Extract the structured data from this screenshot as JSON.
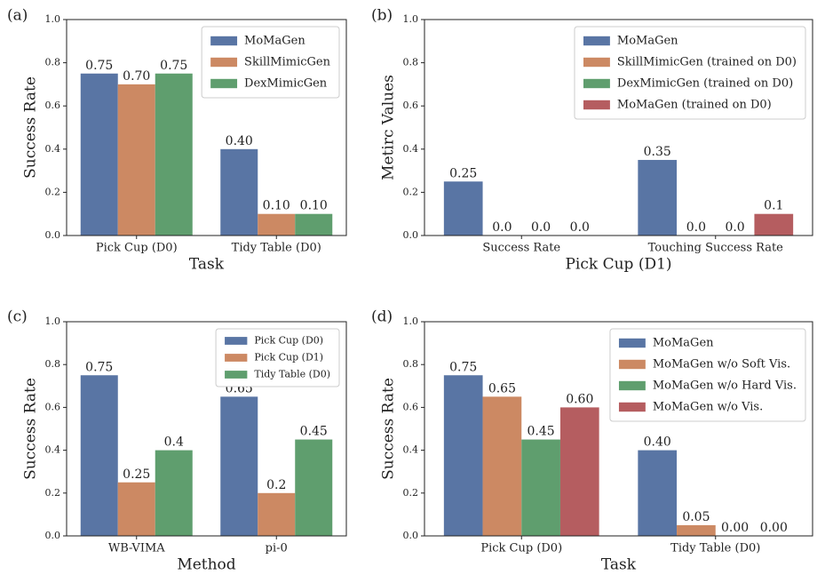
{
  "chart_data": [
    {
      "type": "bar",
      "label": "(a)",
      "xlabel": "Task",
      "ylabel": "Success Rate",
      "categories": [
        "Pick Cup (D0)",
        "Tidy Table (D0)"
      ],
      "series": [
        {
          "name": "MoMaGen",
          "color": "#5975a4",
          "values": [
            0.75,
            0.4
          ],
          "value_labels": [
            "0.75",
            "0.40"
          ]
        },
        {
          "name": "SkillMimicGen",
          "color": "#cc8963",
          "values": [
            0.7,
            0.1
          ],
          "value_labels": [
            "0.70",
            "0.10"
          ]
        },
        {
          "name": "DexMimicGen",
          "color": "#5f9e6e",
          "values": [
            0.75,
            0.1
          ],
          "value_labels": [
            "0.75",
            "0.10"
          ]
        }
      ],
      "ylim": [
        0,
        1
      ],
      "yticks": [
        {
          "value": 0,
          "label": "0.0"
        },
        0.2,
        0.4,
        0.6,
        0.8,
        {
          "value": 1,
          "label": "1.0"
        }
      ],
      "legend": "upper right",
      "grid": false
    },
    {
      "type": "bar",
      "label": "(b)",
      "xlabel": "Pick Cup (D1)",
      "ylabel": "Metirc Values",
      "categories": [
        "Success Rate",
        "Touching Success Rate"
      ],
      "series": [
        {
          "name": "MoMaGen",
          "color": "#5975a4",
          "values": [
            0.25,
            0.35
          ]
        },
        {
          "name": "SkillMimicGen (trained on D0)",
          "color": "#cc8963",
          "values": [
            0,
            0
          ],
          "value_labels": [
            "0.0",
            "0.0"
          ]
        },
        {
          "name": "DexMimicGen (trained on D0)",
          "color": "#5f9e6e",
          "values": [
            0,
            0
          ],
          "value_labels": [
            "0.0",
            "0.0"
          ]
        },
        {
          "name": "MoMaGen (trained on D0)",
          "color": "#b55d60",
          "values": [
            0,
            0.1
          ],
          "value_labels": [
            "0.0",
            "0.1"
          ]
        }
      ],
      "ylim": [
        0,
        1
      ],
      "yticks": [
        {
          "value": 0,
          "label": "0.0"
        },
        0.2,
        0.4,
        0.6,
        0.8,
        {
          "value": 1,
          "label": "1.0"
        }
      ],
      "legend": "upper right",
      "grid": false
    },
    {
      "type": "bar",
      "label": "(c)",
      "xlabel": "Method",
      "ylabel": "Success Rate",
      "categories": [
        "WB-VIMA",
        "pi-0"
      ],
      "series": [
        {
          "name": "Pick Cup (D0)",
          "color": "#5975a4",
          "values": [
            0.75,
            0.65
          ]
        },
        {
          "name": "Pick Cup (D1)",
          "color": "#cc8963",
          "values": [
            0.25,
            0.2
          ]
        },
        {
          "name": "Tidy Table (D0)",
          "color": "#5f9e6e",
          "values": [
            0.4,
            0.45
          ]
        }
      ],
      "ylim": [
        0,
        1
      ],
      "yticks": [
        {
          "value": 0,
          "label": "0.0"
        },
        0.2,
        0.4,
        0.6,
        0.8,
        {
          "value": 1,
          "label": "1.0"
        }
      ],
      "legend": "upper right",
      "grid": false
    },
    {
      "type": "bar",
      "label": "(d)",
      "xlabel": "Task",
      "ylabel": "Success Rate",
      "categories": [
        "Pick Cup (D0)",
        "Tidy Table (D0)"
      ],
      "series": [
        {
          "name": "MoMaGen",
          "color": "#5975a4",
          "values": [
            0.75,
            0.4
          ],
          "value_labels": [
            "0.75",
            "0.40"
          ]
        },
        {
          "name": "MoMaGen w/o Soft Vis.",
          "color": "#cc8963",
          "values": [
            0.65,
            0.05
          ],
          "value_labels": [
            "0.65",
            "0.05"
          ]
        },
        {
          "name": "MoMaGen w/o Hard Vis.",
          "color": "#5f9e6e",
          "values": [
            0.45,
            0
          ],
          "value_labels": [
            "0.45",
            "0.00"
          ]
        },
        {
          "name": "MoMaGen w/o Vis.",
          "color": "#b55d60",
          "values": [
            0.6,
            0
          ],
          "value_labels": [
            "0.60",
            "0.00"
          ]
        }
      ],
      "ylim": [
        0,
        1
      ],
      "yticks": [
        {
          "value": 0,
          "label": "0.0"
        },
        0.2,
        0.4,
        0.6,
        0.8,
        {
          "value": 1,
          "label": "1.0"
        }
      ],
      "legend": "upper right",
      "grid": false
    }
  ]
}
